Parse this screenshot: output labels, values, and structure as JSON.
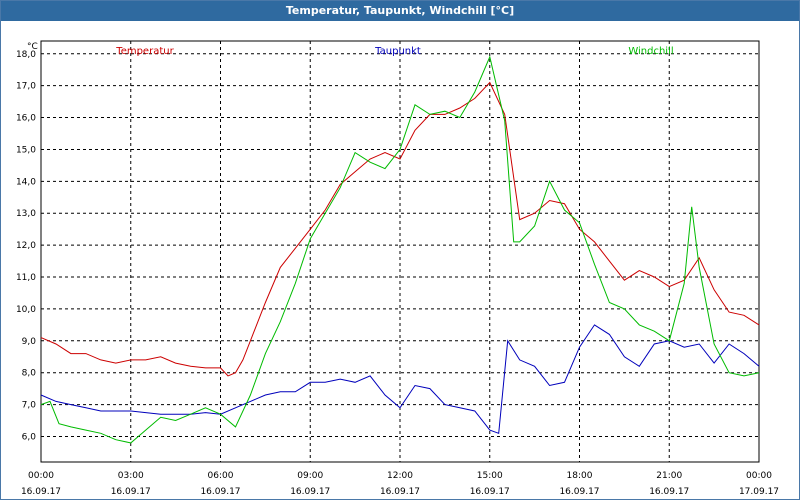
{
  "window": {
    "title": "Temperatur, Taupunkt, Windchill [°C]"
  },
  "chart_data": {
    "type": "line",
    "title": "Temperatur, Taupunkt, Windchill [°C]",
    "ylabel": "°C",
    "ylim": [
      5.2,
      18.4
    ],
    "xlim": [
      0,
      24
    ],
    "grid": true,
    "legend_placement": "top",
    "y_ticks": [
      "6,0",
      "7,0",
      "8,0",
      "9,0",
      "10,0",
      "11,0",
      "12,0",
      "13,0",
      "14,0",
      "15,0",
      "16,0",
      "17,0",
      "18,0"
    ],
    "y_tick_values": [
      6,
      7,
      8,
      9,
      10,
      11,
      12,
      13,
      14,
      15,
      16,
      17,
      18
    ],
    "x_ticks": [
      {
        "time": "00:00",
        "date": "16.09.17"
      },
      {
        "time": "03:00",
        "date": "16.09.17"
      },
      {
        "time": "06:00",
        "date": "16.09.17"
      },
      {
        "time": "09:00",
        "date": "16.09.17"
      },
      {
        "time": "12:00",
        "date": "16.09.17"
      },
      {
        "time": "15:00",
        "date": "16.09.17"
      },
      {
        "time": "18:00",
        "date": "16.09.17"
      },
      {
        "time": "21:00",
        "date": "16.09.17"
      },
      {
        "time": "00:00",
        "date": "17.09.17"
      }
    ],
    "x_tick_values": [
      0,
      3,
      6,
      9,
      12,
      15,
      18,
      21,
      24
    ],
    "series": [
      {
        "name": "Temperatur",
        "color": "#cc0000",
        "x": [
          0,
          0.5,
          1,
          1.5,
          2,
          2.5,
          3,
          3.5,
          4,
          4.5,
          5,
          5.5,
          6,
          6.25,
          6.5,
          6.75,
          7,
          7.5,
          8,
          8.5,
          9,
          9.5,
          10,
          10.5,
          11,
          11.5,
          12,
          12.5,
          13,
          13.5,
          14,
          14.5,
          15,
          15.5,
          16,
          16.5,
          17,
          17.5,
          18,
          18.5,
          19,
          19.5,
          20,
          20.5,
          21,
          21.5,
          22,
          22.5,
          23,
          23.5,
          24
        ],
        "values": [
          9.1,
          8.9,
          8.6,
          8.6,
          8.4,
          8.3,
          8.4,
          8.4,
          8.5,
          8.3,
          8.2,
          8.15,
          8.15,
          7.9,
          8.0,
          8.4,
          9.0,
          10.2,
          11.3,
          11.9,
          12.5,
          13.1,
          13.9,
          14.3,
          14.7,
          14.9,
          14.7,
          15.6,
          16.1,
          16.1,
          16.3,
          16.6,
          17.1,
          16.1,
          12.8,
          13.0,
          13.4,
          13.3,
          12.5,
          12.1,
          11.5,
          10.9,
          11.2,
          11.0,
          10.7,
          10.9,
          11.6,
          10.6,
          9.9,
          9.8,
          9.5
        ]
      },
      {
        "name": "Taupunkt",
        "color": "#0000bb",
        "x": [
          0,
          0.5,
          1,
          1.5,
          2,
          2.5,
          3,
          3.5,
          4,
          4.5,
          5,
          5.5,
          6,
          6.5,
          7,
          7.5,
          8,
          8.5,
          9,
          9.5,
          10,
          10.5,
          11,
          11.5,
          12,
          12.5,
          13,
          13.5,
          14,
          14.5,
          15,
          15.3,
          15.6,
          16,
          16.5,
          17,
          17.5,
          18,
          18.5,
          19,
          19.5,
          20,
          20.5,
          21,
          21.5,
          22,
          22.5,
          23,
          23.5,
          24
        ],
        "values": [
          7.3,
          7.1,
          7.0,
          6.9,
          6.8,
          6.8,
          6.8,
          6.75,
          6.7,
          6.7,
          6.7,
          6.75,
          6.7,
          6.9,
          7.1,
          7.3,
          7.4,
          7.4,
          7.7,
          7.7,
          7.8,
          7.7,
          7.9,
          7.3,
          6.9,
          7.6,
          7.5,
          7.0,
          6.9,
          6.8,
          6.2,
          6.1,
          9.0,
          8.4,
          8.2,
          7.6,
          7.7,
          8.8,
          9.5,
          9.2,
          8.5,
          8.2,
          8.9,
          9.0,
          8.8,
          8.9,
          8.3,
          8.9,
          8.6,
          8.2
        ]
      },
      {
        "name": "Windchill",
        "color": "#00bb00",
        "x": [
          0,
          0.3,
          0.6,
          1,
          1.5,
          2,
          2.5,
          3,
          3.5,
          4,
          4.5,
          5,
          5.5,
          6,
          6.5,
          7,
          7.5,
          8,
          8.5,
          9,
          9.5,
          10,
          10.5,
          11,
          11.5,
          12,
          12.5,
          13,
          13.5,
          14,
          14.5,
          15,
          15.5,
          15.8,
          16,
          16.5,
          17,
          17.5,
          18,
          18.5,
          19,
          19.5,
          20,
          20.5,
          21,
          21.5,
          21.75,
          22,
          22.5,
          23,
          23.5,
          24
        ],
        "values": [
          7.0,
          7.1,
          6.4,
          6.3,
          6.2,
          6.1,
          5.9,
          5.8,
          6.2,
          6.6,
          6.5,
          6.7,
          6.9,
          6.7,
          6.3,
          7.3,
          8.6,
          9.6,
          10.8,
          12.2,
          13.0,
          13.8,
          14.9,
          14.6,
          14.4,
          15.0,
          16.4,
          16.1,
          16.2,
          16.0,
          16.8,
          17.9,
          15.9,
          12.1,
          12.1,
          12.6,
          14.0,
          13.1,
          12.7,
          11.4,
          10.2,
          10.0,
          9.5,
          9.3,
          9.0,
          10.8,
          13.2,
          11.3,
          8.9,
          8.0,
          7.9,
          8.0
        ]
      }
    ]
  }
}
